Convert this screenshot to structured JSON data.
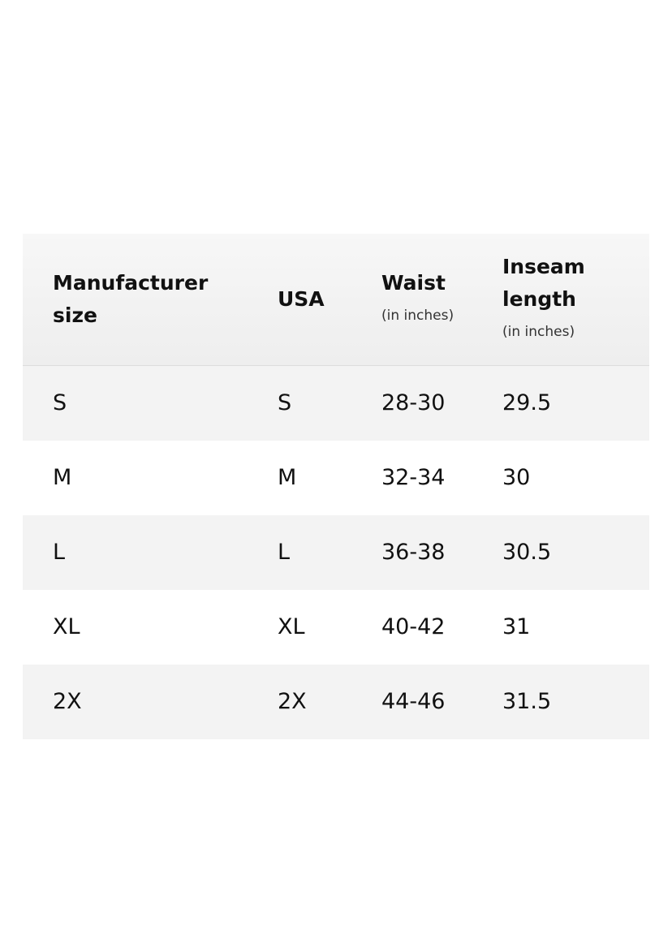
{
  "table": {
    "header": [
      {
        "title": "Manufacturer size"
      },
      {
        "title": "USA"
      },
      {
        "title": "Waist",
        "note": "(in inches)"
      },
      {
        "title": "Inseam length",
        "note": "(in inches)"
      }
    ],
    "rows": [
      [
        "S",
        "S",
        "28-30",
        "29.5"
      ],
      [
        "M",
        "M",
        "32-34",
        "30"
      ],
      [
        "L",
        "L",
        "36-38",
        "30.5"
      ],
      [
        "XL",
        "XL",
        "40-42",
        "31"
      ],
      [
        "2X",
        "2X",
        "44-46",
        "31.5"
      ]
    ]
  }
}
